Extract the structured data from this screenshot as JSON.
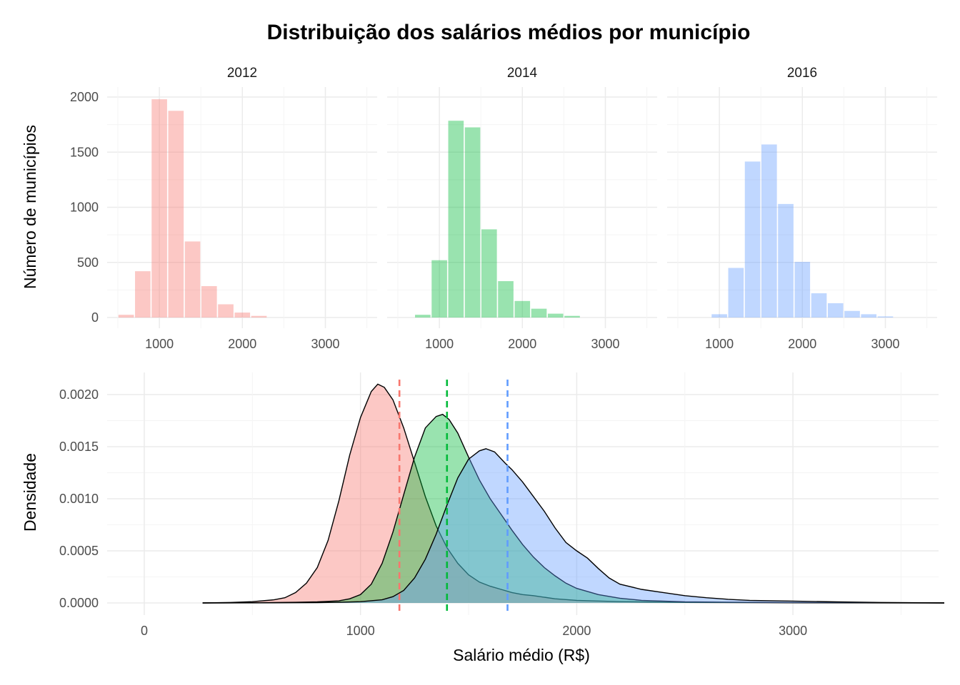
{
  "chart_data": [
    {
      "type": "bar",
      "title": "Distribuição dos salários médios por município",
      "ylabel": "Número de municípios",
      "xlabel": "",
      "ylim": [
        0,
        2000
      ],
      "yticks": [
        0,
        500,
        1000,
        1500,
        2000
      ],
      "xticks": [
        1000,
        2000,
        3000
      ],
      "bin_width": 200,
      "facets": [
        {
          "label": "2012",
          "color": "#F8766D",
          "bins": [
            {
              "x": 600,
              "count": 25
            },
            {
              "x": 800,
              "count": 420
            },
            {
              "x": 1000,
              "count": 1980
            },
            {
              "x": 1200,
              "count": 1875
            },
            {
              "x": 1400,
              "count": 690
            },
            {
              "x": 1600,
              "count": 285
            },
            {
              "x": 1800,
              "count": 120
            },
            {
              "x": 2000,
              "count": 45
            },
            {
              "x": 2200,
              "count": 15
            }
          ]
        },
        {
          "label": "2014",
          "color": "#00BA38",
          "bins": [
            {
              "x": 800,
              "count": 25
            },
            {
              "x": 1000,
              "count": 520
            },
            {
              "x": 1200,
              "count": 1785
            },
            {
              "x": 1400,
              "count": 1725
            },
            {
              "x": 1600,
              "count": 800
            },
            {
              "x": 1800,
              "count": 330
            },
            {
              "x": 2000,
              "count": 150
            },
            {
              "x": 2200,
              "count": 80
            },
            {
              "x": 2400,
              "count": 35
            },
            {
              "x": 2600,
              "count": 15
            }
          ]
        },
        {
          "label": "2016",
          "color": "#619CFF",
          "bins": [
            {
              "x": 1000,
              "count": 30
            },
            {
              "x": 1200,
              "count": 450
            },
            {
              "x": 1400,
              "count": 1415
            },
            {
              "x": 1600,
              "count": 1570
            },
            {
              "x": 1800,
              "count": 1030
            },
            {
              "x": 2000,
              "count": 505
            },
            {
              "x": 2200,
              "count": 220
            },
            {
              "x": 2400,
              "count": 130
            },
            {
              "x": 2600,
              "count": 60
            },
            {
              "x": 2800,
              "count": 30
            },
            {
              "x": 3000,
              "count": 10
            }
          ]
        }
      ]
    },
    {
      "type": "area",
      "xlabel": "Salário médio (R$)",
      "ylabel": "Densidade",
      "xlim": [
        -150,
        3700
      ],
      "ylim": [
        -5e-05,
        0.0022
      ],
      "xticks": [
        0,
        1000,
        2000,
        3000
      ],
      "yticks": [
        "0.0000",
        "0.0005",
        "0.0010",
        "0.0015",
        "0.0020"
      ],
      "series": [
        {
          "name": "2012",
          "color": "#F8766D",
          "mean": 1180,
          "points": [
            [
              270,
              0
            ],
            [
              400,
              5e-06
            ],
            [
              500,
              1.2e-05
            ],
            [
              600,
              3e-05
            ],
            [
              650,
              5e-05
            ],
            [
              700,
              0.0001
            ],
            [
              750,
              0.00019
            ],
            [
              800,
              0.00034
            ],
            [
              850,
              0.0006
            ],
            [
              900,
              0.00098
            ],
            [
              950,
              0.00142
            ],
            [
              1000,
              0.00178
            ],
            [
              1050,
              0.00203
            ],
            [
              1080,
              0.0021
            ],
            [
              1110,
              0.00207
            ],
            [
              1150,
              0.00195
            ],
            [
              1200,
              0.00168
            ],
            [
              1250,
              0.00135
            ],
            [
              1300,
              0.00102
            ],
            [
              1350,
              0.00074
            ],
            [
              1400,
              0.00053
            ],
            [
              1450,
              0.00038
            ],
            [
              1500,
              0.00027
            ],
            [
              1550,
              0.0002
            ],
            [
              1600,
              0.00016
            ],
            [
              1650,
              0.00013
            ],
            [
              1700,
              0.0001
            ],
            [
              1750,
              8e-05
            ],
            [
              1800,
              7e-05
            ],
            [
              1900,
              4e-05
            ],
            [
              2000,
              2.5e-05
            ],
            [
              2200,
              1.2e-05
            ],
            [
              2500,
              5e-06
            ],
            [
              3000,
              2e-06
            ],
            [
              3700,
              0
            ]
          ]
        },
        {
          "name": "2014",
          "color": "#00BA38",
          "mean": 1400,
          "points": [
            [
              270,
              0
            ],
            [
              500,
              2e-06
            ],
            [
              700,
              6e-06
            ],
            [
              800,
              1e-05
            ],
            [
              900,
              2e-05
            ],
            [
              950,
              4e-05
            ],
            [
              1000,
              8e-05
            ],
            [
              1050,
              0.00018
            ],
            [
              1100,
              0.00038
            ],
            [
              1150,
              0.00068
            ],
            [
              1200,
              0.00104
            ],
            [
              1250,
              0.0014
            ],
            [
              1300,
              0.00168
            ],
            [
              1350,
              0.00179
            ],
            [
              1380,
              0.00181
            ],
            [
              1410,
              0.00176
            ],
            [
              1450,
              0.00163
            ],
            [
              1500,
              0.0014
            ],
            [
              1550,
              0.00118
            ],
            [
              1600,
              0.001
            ],
            [
              1650,
              0.00085
            ],
            [
              1700,
              0.0007
            ],
            [
              1750,
              0.00056
            ],
            [
              1800,
              0.00044
            ],
            [
              1850,
              0.00034
            ],
            [
              1900,
              0.00026
            ],
            [
              1950,
              0.00019
            ],
            [
              2000,
              0.00014
            ],
            [
              2100,
              8e-05
            ],
            [
              2200,
              4.5e-05
            ],
            [
              2300,
              2.5e-05
            ],
            [
              2500,
              1e-05
            ],
            [
              3000,
              3e-06
            ],
            [
              3700,
              0
            ]
          ]
        },
        {
          "name": "2016",
          "color": "#619CFF",
          "mean": 1680,
          "points": [
            [
              270,
              0
            ],
            [
              800,
              3e-06
            ],
            [
              900,
              6e-06
            ],
            [
              1000,
              1.2e-05
            ],
            [
              1100,
              3e-05
            ],
            [
              1150,
              6e-05
            ],
            [
              1200,
              0.00012
            ],
            [
              1250,
              0.00024
            ],
            [
              1300,
              0.00042
            ],
            [
              1350,
              0.00066
            ],
            [
              1400,
              0.00094
            ],
            [
              1450,
              0.0012
            ],
            [
              1500,
              0.00138
            ],
            [
              1550,
              0.00146
            ],
            [
              1580,
              0.00148
            ],
            [
              1620,
              0.00145
            ],
            [
              1670,
              0.00134
            ],
            [
              1700,
              0.00128
            ],
            [
              1750,
              0.00116
            ],
            [
              1800,
              0.00102
            ],
            [
              1850,
              0.00088
            ],
            [
              1900,
              0.00072
            ],
            [
              1950,
              0.00058
            ],
            [
              2000,
              0.0005
            ],
            [
              2050,
              0.00043
            ],
            [
              2100,
              0.00033
            ],
            [
              2150,
              0.00024
            ],
            [
              2200,
              0.00018
            ],
            [
              2300,
              0.00013
            ],
            [
              2400,
              0.0001
            ],
            [
              2500,
              7e-05
            ],
            [
              2600,
              5e-05
            ],
            [
              2700,
              3.5e-05
            ],
            [
              2800,
              2.5e-05
            ],
            [
              3000,
              1.8e-05
            ],
            [
              3200,
              1e-05
            ],
            [
              3400,
              5e-06
            ],
            [
              3700,
              0
            ]
          ]
        }
      ]
    }
  ]
}
